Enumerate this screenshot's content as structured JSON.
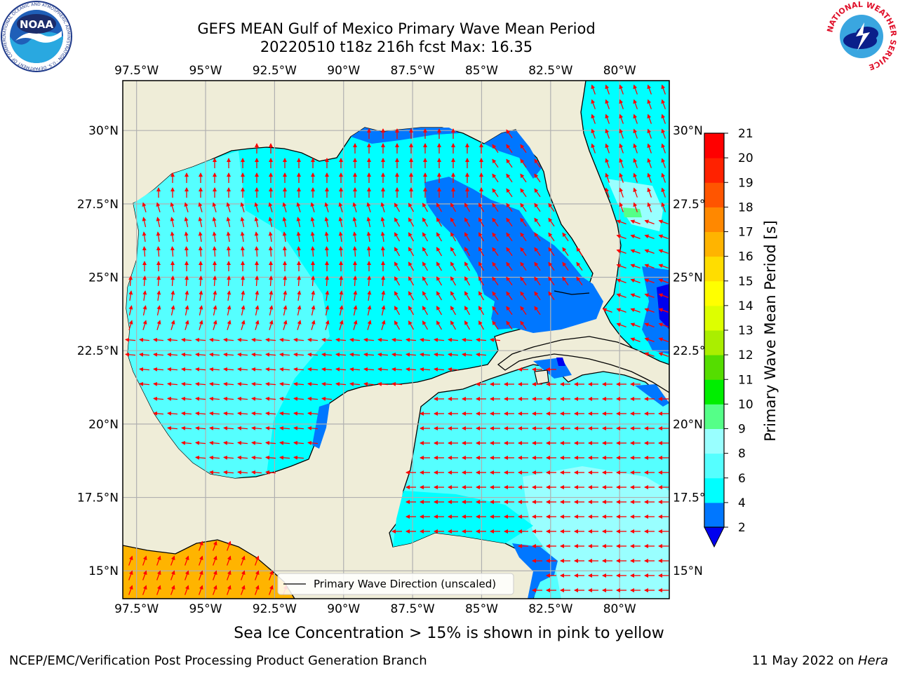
{
  "header": {
    "title_line1": "GEFS MEAN Gulf of Mexico Primary Wave Mean Period",
    "title_line2": "20220510 t18z 216h fcst   Max: 16.35"
  },
  "logos": {
    "noaa_text": "NOAA",
    "noaa_ring": "NATIONAL OCEANIC AND ATMOSPHERIC ADMINISTRATION · U.S. DEPARTMENT OF COMMERCE",
    "nws_ring": "NATIONAL WEATHER SERVICE"
  },
  "map": {
    "lon_labels": [
      "97.5°W",
      "95°W",
      "92.5°W",
      "90°W",
      "87.5°W",
      "85°W",
      "82.5°W",
      "80°W"
    ],
    "lon_values": [
      -97.5,
      -95,
      -92.5,
      -90,
      -87.5,
      -85,
      -82.5,
      -80
    ],
    "lat_labels": [
      "30°N",
      "27.5°N",
      "25°N",
      "22.5°N",
      "20°N",
      "17.5°N",
      "15°N"
    ],
    "lat_values": [
      30,
      27.5,
      25,
      22.5,
      20,
      17.5,
      15
    ],
    "lon_range": [
      -98,
      -78.2
    ],
    "lat_range": [
      14.05,
      31.7
    ],
    "legend_label": "Primary Wave Direction (unscaled)",
    "colors": {
      "land": "#efedd8",
      "ocean_main": "#00ffff",
      "ocean_light": "#55ffff",
      "ocean_pale": "#99ffff",
      "ocean_blue": "#0077ff",
      "ocean_dark": "#0000ee",
      "ice": "#ffb400",
      "arrow": "#ff0000",
      "grid": "#b0b0b0"
    }
  },
  "colorbar": {
    "label": "Primary Wave Mean Period [s]",
    "ticks": [
      "2",
      "4",
      "6",
      "8",
      "9",
      "10",
      "11",
      "12",
      "13",
      "14",
      "15",
      "16",
      "17",
      "18",
      "19",
      "20",
      "21"
    ],
    "colors": [
      "#0077ff",
      "#00ffff",
      "#55ffff",
      "#99ffff",
      "#55ff88",
      "#00ee00",
      "#55dd00",
      "#aaee00",
      "#ddff00",
      "#ffff00",
      "#ffdd00",
      "#ffb400",
      "#ff8800",
      "#ff5500",
      "#ff2200",
      "#ff0000"
    ],
    "under_color": "#0000ee"
  },
  "footer": {
    "note": "Sea Ice Concentration > 15% is shown in pink to yellow",
    "left": "NCEP/EMC/Verification Post Processing Product Generation Branch",
    "right_prefix": "11 May 2022 on ",
    "right_host": "Hera"
  }
}
